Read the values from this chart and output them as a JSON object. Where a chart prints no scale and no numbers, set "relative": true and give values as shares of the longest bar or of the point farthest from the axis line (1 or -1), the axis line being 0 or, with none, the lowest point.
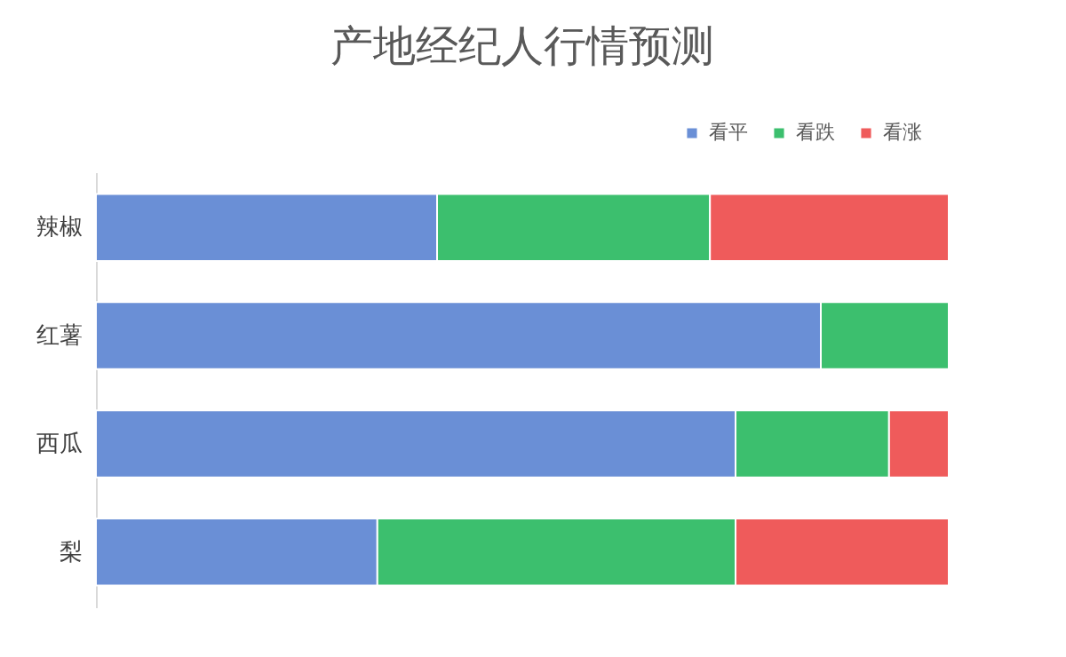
{
  "chart_data": {
    "type": "bar",
    "orientation": "horizontal",
    "stacked": true,
    "relative": true,
    "title": "产地经纪人行情预测",
    "categories": [
      "辣椒",
      "红薯",
      "西瓜",
      "梨"
    ],
    "legend": "top right",
    "series": [
      {
        "name": "看平",
        "color": "#6a8fd6",
        "values": [
          0.4,
          0.85,
          0.75,
          0.33
        ]
      },
      {
        "name": "看跌",
        "color": "#3cbf6e",
        "values": [
          0.32,
          0.15,
          0.18,
          0.42
        ]
      },
      {
        "name": "看涨",
        "color": "#ef5b5b",
        "values": [
          0.28,
          null,
          0.07,
          0.25
        ]
      }
    ]
  }
}
